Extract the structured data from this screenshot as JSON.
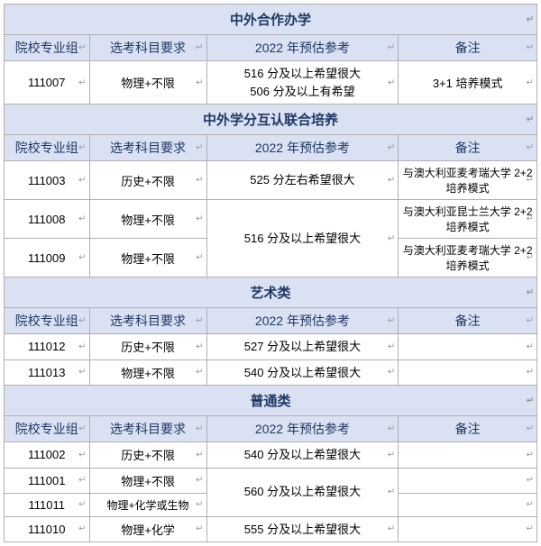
{
  "palette": {
    "header_bg": "#d9e1f2",
    "header_text": "#1f3864",
    "border": "#b0b0b0"
  },
  "enter_mark": "↵",
  "headers": {
    "code": "院校专业组",
    "subject": "选考科目要求",
    "forecast": "2022 年预估参考",
    "note": "备注"
  },
  "sections": [
    {
      "title": "中外合作办学",
      "rows": [
        {
          "code": "111007",
          "subject": "物理+不限",
          "forecast_lines": [
            "516 分及以上希望很大",
            "506 分及以上有希望"
          ],
          "note": "3+1 培养模式"
        }
      ]
    },
    {
      "title": "中外学分互认联合培养",
      "rows": [
        {
          "code": "111003",
          "subject": "历史+不限",
          "forecast_lines": [
            "525 分左右希望很大"
          ],
          "note": "与澳大利亚麦考瑞大学 2+2 培养模式"
        },
        {
          "code": "111008",
          "subject": "物理+不限",
          "forecast_lines": [
            "516 分及以上希望很大"
          ],
          "forecast_rowspan": 2,
          "note": "与澳大利亚昆士兰大学 2+2 培养模式"
        },
        {
          "code": "111009",
          "subject": "物理+不限",
          "forecast_skip": true,
          "note": "与澳大利亚麦考瑞大学 2+2 培养模式"
        }
      ]
    },
    {
      "title": "艺术类",
      "rows": [
        {
          "code": "111012",
          "subject": "历史+不限",
          "forecast_lines": [
            "527 分及以上希望很大"
          ],
          "note": ""
        },
        {
          "code": "111013",
          "subject": "物理+不限",
          "forecast_lines": [
            "540 分及以上希望很大"
          ],
          "note": ""
        }
      ]
    },
    {
      "title": "普通类",
      "rows": [
        {
          "code": "111002",
          "subject": "历史+不限",
          "forecast_lines": [
            "540 分及以上希望很大"
          ],
          "note": ""
        },
        {
          "code": "111001",
          "subject": "物理+不限",
          "forecast_lines": [
            "560 分及以上希望很大"
          ],
          "forecast_rowspan": 2,
          "note": ""
        },
        {
          "code": "111011",
          "subject": "物理+化学或生物",
          "forecast_skip": true,
          "note": ""
        },
        {
          "code": "111010",
          "subject": "物理+化学",
          "forecast_lines": [
            "555 分及以上希望很大"
          ],
          "note": ""
        }
      ]
    }
  ]
}
